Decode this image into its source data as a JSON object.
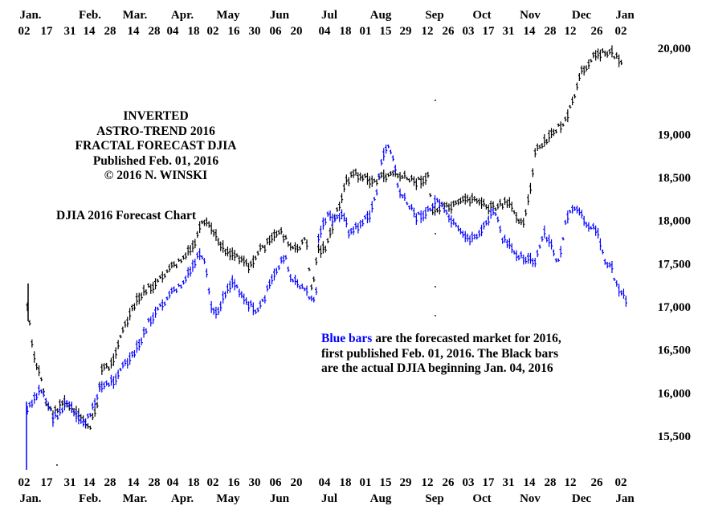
{
  "chart_data": {
    "type": "ohlc",
    "title_lines": [
      "INVERTED",
      "ASTRO-TREND 2016",
      "FRACTAL FORECAST DJIA",
      "Published Feb. 01, 2016",
      "© 2016 N. WINSKI"
    ],
    "subtitle": "DJIA 2016 Forecast Chart",
    "note": {
      "blue_part": "Blue bars",
      "rest": " are the forecasted market for 2016, first published Feb. 01, 2016.  The Black bars are the actual  DJIA beginning Jan. 04, 2016"
    },
    "top_months": [
      "Jan.",
      "Feb.",
      "Mar.",
      "Apr.",
      "May",
      "Jun",
      "Jul",
      "Aug",
      "Sep",
      "Oct",
      "Nov",
      "Dec",
      "Jan"
    ],
    "bottom_months": [
      "Jan.",
      "Feb.",
      "Mar.",
      "Apr.",
      "May",
      "Jun",
      "Jul",
      "Aug",
      "Sep",
      "Oct",
      "Nov",
      "Dec",
      "Jan"
    ],
    "top_days": [
      "02",
      "17",
      "31",
      "14",
      "28",
      "14",
      "28",
      "04",
      "18",
      "02",
      "16",
      "30",
      "06",
      "20",
      "04",
      "18",
      "01",
      "15",
      "29",
      "12",
      "26",
      "03",
      "17",
      "31",
      "14",
      "28",
      "12",
      "26",
      "02"
    ],
    "bottom_days": [
      "02",
      "17",
      "31",
      "14",
      "28",
      "14",
      "28",
      "04",
      "18",
      "02",
      "16",
      "30",
      "06",
      "20",
      "04",
      "18",
      "01",
      "15",
      "29",
      "12",
      "26",
      "03",
      "17",
      "31",
      "14",
      "28",
      "12",
      "26",
      "02"
    ],
    "y_ticks": [
      "20,000",
      "19,000",
      "18,500",
      "18,000",
      "17,500",
      "17,000",
      "16,500",
      "16,000",
      "15,500"
    ],
    "ylim": [
      15200,
      20100
    ],
    "colors": {
      "forecast": "#0000ff",
      "actual": "#000000"
    },
    "series": [
      {
        "name": "Blue bars",
        "points": [
          [
            "2016-01-04",
            15800
          ],
          [
            "2016-01-08",
            15900
          ],
          [
            "2016-01-12",
            16050
          ],
          [
            "2016-01-15",
            15950
          ],
          [
            "2016-01-20",
            15700
          ],
          [
            "2016-01-25",
            15800
          ],
          [
            "2016-01-29",
            15900
          ],
          [
            "2016-02-03",
            15700
          ],
          [
            "2016-02-08",
            15650
          ],
          [
            "2016-02-12",
            15750
          ],
          [
            "2016-02-17",
            16050
          ],
          [
            "2016-02-22",
            16100
          ],
          [
            "2016-02-26",
            16150
          ],
          [
            "2016-03-02",
            16300
          ],
          [
            "2016-03-08",
            16400
          ],
          [
            "2016-03-14",
            16600
          ],
          [
            "2016-03-18",
            16800
          ],
          [
            "2016-03-24",
            16950
          ],
          [
            "2016-03-30",
            17100
          ],
          [
            "2016-04-04",
            17200
          ],
          [
            "2016-04-08",
            17250
          ],
          [
            "2016-04-13",
            17400
          ],
          [
            "2016-04-18",
            17600
          ],
          [
            "2016-04-22",
            17500
          ],
          [
            "2016-04-26",
            17000
          ],
          [
            "2016-04-29",
            16900
          ],
          [
            "2016-05-04",
            17150
          ],
          [
            "2016-05-09",
            17300
          ],
          [
            "2016-05-13",
            17200
          ],
          [
            "2016-05-18",
            17050
          ],
          [
            "2016-05-23",
            16950
          ],
          [
            "2016-05-26",
            17000
          ],
          [
            "2016-06-01",
            17250
          ],
          [
            "2016-06-07",
            17500
          ],
          [
            "2016-06-10",
            17600
          ],
          [
            "2016-06-14",
            17300
          ],
          [
            "2016-06-20",
            17250
          ],
          [
            "2016-06-24",
            17150
          ],
          [
            "2016-06-29",
            17050
          ],
          [
            "2016-07-01",
            17850
          ],
          [
            "2016-07-06",
            18050
          ],
          [
            "2016-07-11",
            18000
          ],
          [
            "2016-07-15",
            18100
          ],
          [
            "2016-07-20",
            17850
          ],
          [
            "2016-07-26",
            17950
          ],
          [
            "2016-08-01",
            18050
          ],
          [
            "2016-08-05",
            18300
          ],
          [
            "2016-08-09",
            18700
          ],
          [
            "2016-08-12",
            18900
          ],
          [
            "2016-08-16",
            18700
          ],
          [
            "2016-08-19",
            18350
          ],
          [
            "2016-08-24",
            18200
          ],
          [
            "2016-08-30",
            18050
          ],
          [
            "2016-09-06",
            18100
          ],
          [
            "2016-09-12",
            18250
          ],
          [
            "2016-09-16",
            18100
          ],
          [
            "2016-09-22",
            17950
          ],
          [
            "2016-09-28",
            17800
          ],
          [
            "2016-10-04",
            17800
          ],
          [
            "2016-10-10",
            17900
          ],
          [
            "2016-10-14",
            18050
          ],
          [
            "2016-10-18",
            18100
          ],
          [
            "2016-10-21",
            17800
          ],
          [
            "2016-10-26",
            17700
          ],
          [
            "2016-11-01",
            17600
          ],
          [
            "2016-11-07",
            17550
          ],
          [
            "2016-11-11",
            17500
          ],
          [
            "2016-11-16",
            17850
          ],
          [
            "2016-11-21",
            17700
          ],
          [
            "2016-11-25",
            17500
          ],
          [
            "2016-11-30",
            18000
          ],
          [
            "2016-12-05",
            18150
          ],
          [
            "2016-12-09",
            18050
          ],
          [
            "2016-12-14",
            17950
          ],
          [
            "2016-12-20",
            17850
          ],
          [
            "2016-12-23",
            17550
          ],
          [
            "2016-12-28",
            17450
          ],
          [
            "2016-12-31",
            17250
          ],
          [
            "2017-01-04",
            17150
          ],
          [
            "2017-01-06",
            17050
          ]
        ]
      },
      {
        "name": "Black bars",
        "points": [
          [
            "2016-01-04",
            17000
          ],
          [
            "2016-01-06",
            16700
          ],
          [
            "2016-01-08",
            16400
          ],
          [
            "2016-01-13",
            16150
          ],
          [
            "2016-01-15",
            15900
          ],
          [
            "2016-01-20",
            15750
          ],
          [
            "2016-01-25",
            15900
          ],
          [
            "2016-01-29",
            15850
          ],
          [
            "2016-02-03",
            15750
          ],
          [
            "2016-02-08",
            15700
          ],
          [
            "2016-02-11",
            15550
          ],
          [
            "2016-02-16",
            15900
          ],
          [
            "2016-02-19",
            16300
          ],
          [
            "2016-02-24",
            16300
          ],
          [
            "2016-03-01",
            16650
          ],
          [
            "2016-03-07",
            16900
          ],
          [
            "2016-03-11",
            17050
          ],
          [
            "2016-03-17",
            17200
          ],
          [
            "2016-03-23",
            17250
          ],
          [
            "2016-03-29",
            17400
          ],
          [
            "2016-04-05",
            17500
          ],
          [
            "2016-04-11",
            17600
          ],
          [
            "2016-04-15",
            17700
          ],
          [
            "2016-04-20",
            17950
          ],
          [
            "2016-04-25",
            17950
          ],
          [
            "2016-04-29",
            17800
          ],
          [
            "2016-05-05",
            17650
          ],
          [
            "2016-05-11",
            17600
          ],
          [
            "2016-05-16",
            17550
          ],
          [
            "2016-05-20",
            17450
          ],
          [
            "2016-05-25",
            17650
          ],
          [
            "2016-06-01",
            17750
          ],
          [
            "2016-06-07",
            17900
          ],
          [
            "2016-06-13",
            17700
          ],
          [
            "2016-06-17",
            17650
          ],
          [
            "2016-06-23",
            17800
          ],
          [
            "2016-06-27",
            17150
          ],
          [
            "2016-06-30",
            17650
          ],
          [
            "2016-07-06",
            17700
          ],
          [
            "2016-07-12",
            18100
          ],
          [
            "2016-07-18",
            18450
          ],
          [
            "2016-07-22",
            18550
          ],
          [
            "2016-07-28",
            18500
          ],
          [
            "2016-08-03",
            18450
          ],
          [
            "2016-08-09",
            18500
          ],
          [
            "2016-08-15",
            18550
          ],
          [
            "2016-08-22",
            18500
          ],
          [
            "2016-08-29",
            18450
          ],
          [
            "2016-09-06",
            18500
          ],
          [
            "2016-09-09",
            18100
          ],
          [
            "2016-09-14",
            18150
          ],
          [
            "2016-09-20",
            18150
          ],
          [
            "2016-09-26",
            18200
          ],
          [
            "2016-09-30",
            18250
          ],
          [
            "2016-10-06",
            18250
          ],
          [
            "2016-10-12",
            18150
          ],
          [
            "2016-10-18",
            18150
          ],
          [
            "2016-10-24",
            18200
          ],
          [
            "2016-10-28",
            18150
          ],
          [
            "2016-11-03",
            17950
          ],
          [
            "2016-11-08",
            18350
          ],
          [
            "2016-11-11",
            18800
          ],
          [
            "2016-11-17",
            18900
          ],
          [
            "2016-11-23",
            19050
          ],
          [
            "2016-11-30",
            19150
          ],
          [
            "2016-12-06",
            19500
          ],
          [
            "2016-12-09",
            19700
          ],
          [
            "2016-12-14",
            19850
          ],
          [
            "2016-12-20",
            19950
          ],
          [
            "2016-12-23",
            19950
          ],
          [
            "2016-12-28",
            19950
          ],
          [
            "2017-01-03",
            19850
          ]
        ]
      }
    ],
    "grid": false,
    "legend": "none"
  }
}
